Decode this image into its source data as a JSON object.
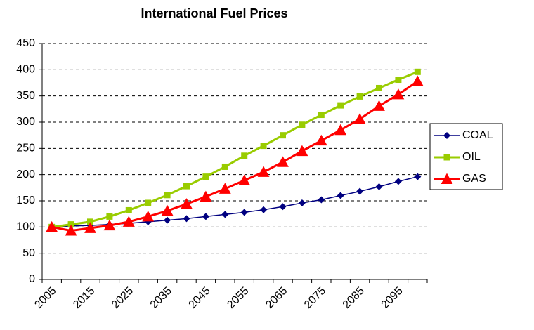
{
  "chart_data": {
    "type": "line",
    "title": "International Fuel Prices",
    "categories": [
      "2005",
      null,
      "2015",
      null,
      "2025",
      null,
      "2035",
      null,
      "2045",
      null,
      "2055",
      null,
      "2065",
      null,
      "2075",
      null,
      "2085",
      null,
      "2095",
      null
    ],
    "series": [
      {
        "name": "COAL",
        "color": "#000080",
        "marker": "diamond",
        "values": [
          100,
          102,
          103,
          105,
          107,
          110,
          113,
          116,
          120,
          124,
          128,
          133,
          139,
          146,
          152,
          160,
          168,
          177,
          187,
          196
        ]
      },
      {
        "name": "OIL",
        "color": "#99cc00",
        "marker": "square",
        "values": [
          100,
          105,
          110,
          120,
          132,
          146,
          161,
          178,
          196,
          215,
          236,
          255,
          275,
          295,
          314,
          332,
          349,
          365,
          381,
          396
        ]
      },
      {
        "name": "GAS",
        "color": "#ff0000",
        "marker": "triangle",
        "values": [
          100,
          93,
          98,
          103,
          110,
          120,
          131,
          144,
          158,
          173,
          189,
          205,
          224,
          245,
          265,
          285,
          306,
          331,
          353,
          378
        ]
      }
    ],
    "ylim": [
      0,
      450
    ],
    "yticks": [
      0,
      50,
      100,
      150,
      200,
      250,
      300,
      350,
      400,
      450
    ],
    "grid": true,
    "legend": "right"
  }
}
